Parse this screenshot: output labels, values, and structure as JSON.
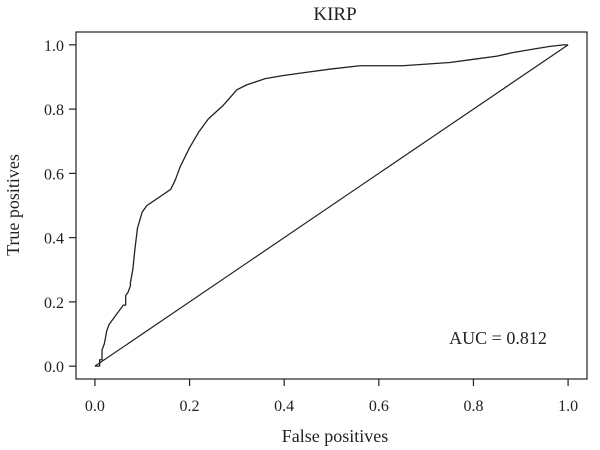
{
  "chart_data": {
    "type": "line",
    "title": "KIRP",
    "xlabel": "False positives",
    "ylabel": "True positives",
    "xlim": [
      -0.04,
      1.04
    ],
    "ylim": [
      -0.04,
      1.04
    ],
    "x_ticks": [
      0.0,
      0.2,
      0.4,
      0.6,
      0.8,
      1.0
    ],
    "x_tick_labels": [
      "0.0",
      "0.2",
      "0.4",
      "0.6",
      "0.8",
      "1.0"
    ],
    "y_ticks": [
      0.0,
      0.2,
      0.4,
      0.6,
      0.8,
      1.0
    ],
    "y_tick_labels": [
      "0.0",
      "0.2",
      "0.4",
      "0.6",
      "0.8",
      "1.0"
    ],
    "grid": false,
    "annotation": "AUC = 0.812",
    "series": [
      {
        "x": [
          0.0,
          0.01,
          0.01,
          0.015,
          0.015,
          0.02,
          0.025,
          0.03,
          0.04,
          0.05,
          0.06,
          0.065,
          0.065,
          0.07,
          0.075,
          0.075,
          0.08,
          0.085,
          0.09,
          0.1,
          0.11,
          0.12,
          0.14,
          0.16,
          0.17,
          0.18,
          0.2,
          0.22,
          0.24,
          0.27,
          0.3,
          0.32,
          0.36,
          0.4,
          0.45,
          0.5,
          0.56,
          0.6,
          0.65,
          0.7,
          0.75,
          0.8,
          0.85,
          0.88,
          0.92,
          0.96,
          0.99,
          1.0
        ],
        "y": [
          0.0,
          0.0,
          0.02,
          0.02,
          0.05,
          0.07,
          0.11,
          0.13,
          0.15,
          0.17,
          0.19,
          0.19,
          0.22,
          0.23,
          0.25,
          0.26,
          0.3,
          0.37,
          0.43,
          0.48,
          0.5,
          0.51,
          0.53,
          0.55,
          0.58,
          0.62,
          0.68,
          0.73,
          0.77,
          0.81,
          0.86,
          0.875,
          0.895,
          0.905,
          0.915,
          0.925,
          0.935,
          0.935,
          0.935,
          0.94,
          0.945,
          0.955,
          0.965,
          0.975,
          0.985,
          0.995,
          1.0,
          1.0
        ]
      }
    ],
    "reference_line": {
      "x": [
        0.0,
        1.0
      ],
      "y": [
        0.0,
        1.0
      ]
    }
  }
}
